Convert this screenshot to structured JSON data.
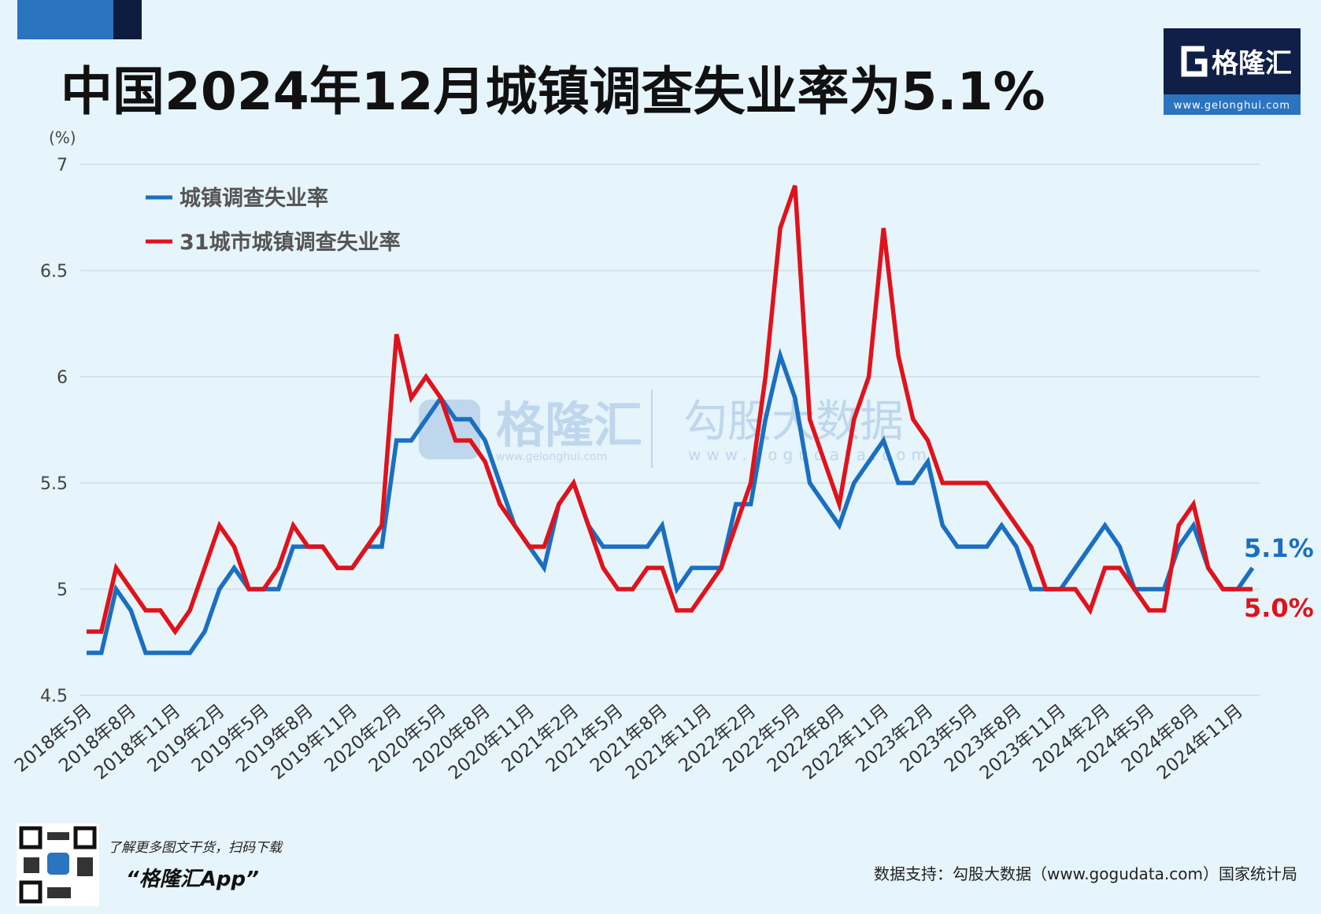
{
  "chart_data": {
    "type": "line",
    "title": "中国2024年12月城镇调查失业率为5.1%",
    "y_unit": "(%)",
    "categories": [
      "2018年5月",
      null,
      null,
      "2018年8月",
      null,
      null,
      "2018年11月",
      null,
      null,
      "2019年2月",
      null,
      null,
      "2019年5月",
      null,
      null,
      "2019年8月",
      null,
      null,
      "2019年11月",
      null,
      null,
      "2020年2月",
      null,
      null,
      "2020年5月",
      null,
      null,
      "2020年8月",
      null,
      null,
      "2020年11月",
      null,
      null,
      "2021年2月",
      null,
      null,
      "2021年5月",
      null,
      null,
      "2021年8月",
      null,
      null,
      "2021年11月",
      null,
      null,
      "2022年2月",
      null,
      null,
      "2022年5月",
      null,
      null,
      "2022年8月",
      null,
      null,
      "2022年11月",
      null,
      null,
      "2023年2月",
      null,
      null,
      "2023年5月",
      null,
      null,
      "2023年8月",
      null,
      null,
      "2023年11月",
      null,
      null,
      "2024年2月",
      null,
      null,
      "2024年5月",
      null,
      null,
      "2024年8月",
      null,
      null,
      "2024年11月",
      null
    ],
    "series": [
      {
        "name": "城镇调查失业率",
        "color": "#1a6fc0",
        "values": [
          4.7,
          4.7,
          5.0,
          4.9,
          4.7,
          4.7,
          4.7,
          4.7,
          4.8,
          5.0,
          5.1,
          5.0,
          5.0,
          5.0,
          5.2,
          5.2,
          5.2,
          5.1,
          5.1,
          5.2,
          5.2,
          5.7,
          5.7,
          5.8,
          5.9,
          5.8,
          5.8,
          5.7,
          5.5,
          5.3,
          5.2,
          5.1,
          5.4,
          5.5,
          5.3,
          5.2,
          5.2,
          5.2,
          5.2,
          5.3,
          5.0,
          5.1,
          5.1,
          5.1,
          5.4,
          5.4,
          5.8,
          6.1,
          5.9,
          5.5,
          5.4,
          5.3,
          5.5,
          5.6,
          5.7,
          5.5,
          5.5,
          5.6,
          5.3,
          5.2,
          5.2,
          5.2,
          5.3,
          5.2,
          5.0,
          5.0,
          5.0,
          5.1,
          5.2,
          5.3,
          5.2,
          5.0,
          5.0,
          5.0,
          5.2,
          5.3,
          5.1,
          5.0,
          5.0,
          5.1
        ],
        "value_labels": [
          null,
          null,
          null,
          null,
          null,
          null,
          null,
          null,
          null,
          null,
          null,
          null,
          null,
          null,
          null,
          null,
          null,
          null,
          null,
          null,
          null,
          null,
          null,
          null,
          null,
          null,
          null,
          null,
          null,
          null,
          null,
          null,
          null,
          null,
          null,
          null,
          null,
          null,
          null,
          null,
          null,
          null,
          null,
          null,
          null,
          null,
          null,
          null,
          null,
          null,
          null,
          null,
          null,
          null,
          null,
          null,
          null,
          null,
          null,
          null,
          null,
          null,
          null,
          null,
          null,
          null,
          null,
          null,
          null,
          null,
          null,
          null,
          null,
          null,
          null,
          null,
          null,
          null,
          null,
          "5.1%"
        ]
      },
      {
        "name": "31城市城镇调查失业率",
        "color": "#e0121b",
        "values": [
          4.8,
          4.8,
          5.1,
          5.0,
          4.9,
          4.9,
          4.8,
          4.9,
          5.1,
          5.3,
          5.2,
          5.0,
          5.0,
          5.1,
          5.3,
          5.2,
          5.2,
          5.1,
          5.1,
          5.2,
          5.3,
          6.2,
          5.9,
          6.0,
          5.9,
          5.7,
          5.7,
          5.6,
          5.4,
          5.3,
          5.2,
          5.2,
          5.4,
          5.5,
          5.3,
          5.1,
          5.0,
          5.0,
          5.1,
          5.1,
          4.9,
          4.9,
          5.0,
          5.1,
          5.3,
          5.5,
          6.0,
          6.7,
          6.9,
          5.8,
          5.6,
          5.4,
          5.8,
          6.0,
          6.7,
          6.1,
          5.8,
          5.7,
          5.5,
          5.5,
          5.5,
          5.5,
          5.4,
          5.3,
          5.2,
          5.0,
          5.0,
          5.0,
          4.9,
          5.1,
          5.1,
          5.0,
          4.9,
          4.9,
          5.3,
          5.4,
          5.1,
          5.0,
          5.0,
          5.0
        ],
        "value_labels": [
          null,
          null,
          null,
          null,
          null,
          null,
          null,
          null,
          null,
          null,
          null,
          null,
          null,
          null,
          null,
          null,
          null,
          null,
          null,
          null,
          null,
          null,
          null,
          null,
          null,
          null,
          null,
          null,
          null,
          null,
          null,
          null,
          null,
          null,
          null,
          null,
          null,
          null,
          null,
          null,
          null,
          null,
          null,
          null,
          null,
          null,
          null,
          null,
          null,
          null,
          null,
          null,
          null,
          null,
          null,
          null,
          null,
          null,
          null,
          null,
          null,
          null,
          null,
          null,
          null,
          null,
          null,
          null,
          null,
          null,
          null,
          null,
          null,
          null,
          null,
          null,
          null,
          null,
          null,
          "5.0%"
        ]
      }
    ],
    "ylim": [
      4.5,
      7
    ],
    "yticks": [
      4.5,
      5,
      5.5,
      6,
      6.5,
      7
    ],
    "grid": true,
    "legend": "top-left"
  },
  "logo": {
    "name": "格隆汇",
    "url": "www.gelonghui.com"
  },
  "watermark": {
    "brand": "格隆汇",
    "brand_url": "www.gelonghui.com",
    "data": "勾股大数据",
    "data_url": "www.gogudata.com"
  },
  "footer": {
    "promo": "了解更多图文干货，扫码下载",
    "app": "“格隆汇App”",
    "source": "数据支持：勾股大数据（www.gogudata.com）国家统计局"
  }
}
